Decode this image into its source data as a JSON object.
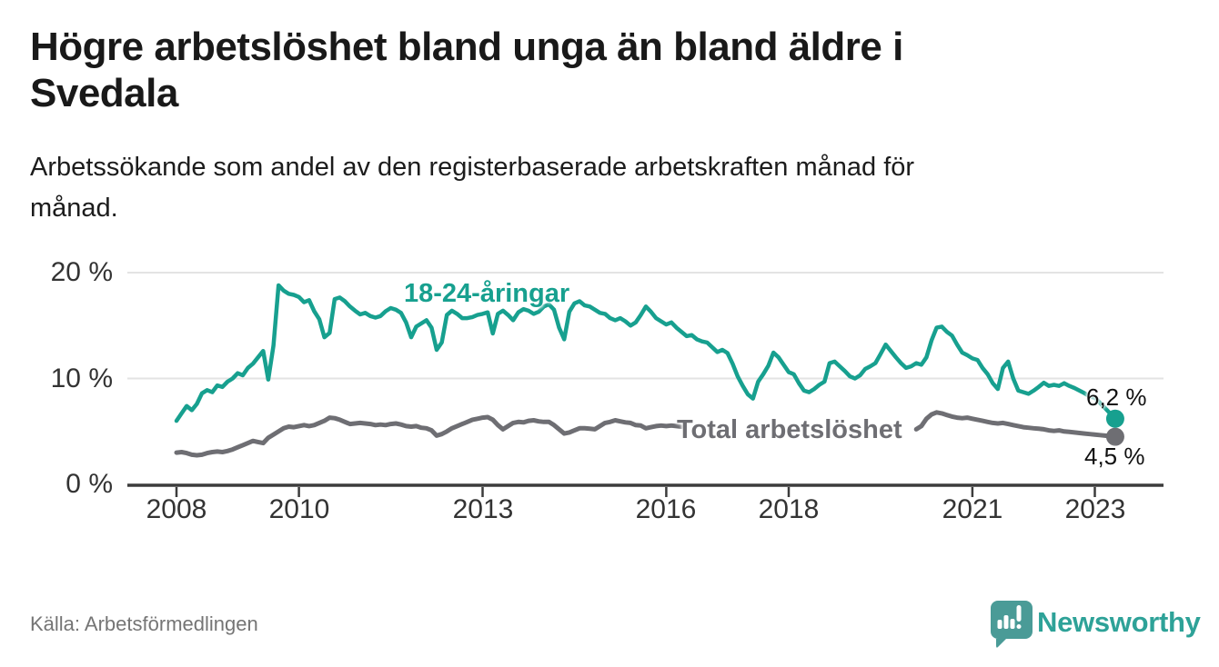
{
  "title_lines": [
    "Högre arbetslöshet bland unga än bland äldre i",
    "Svedala"
  ],
  "subtitle_lines": [
    "Arbetssökande som andel av den registerbaserade arbetskraften månad för",
    "månad."
  ],
  "source": "Källa: Arbetsförmedlingen",
  "branding": {
    "name": "Newsworthy",
    "logo_icon": "speech-bubble-bar-chart-icon",
    "logo_color": "#4A9B97",
    "text_color": "#2EA298"
  },
  "colors": {
    "young": "#17A08F",
    "total": "#6E6E73",
    "axis": "#3C3C3C",
    "grid": "#E3E3E3",
    "text": "#1A1A1A",
    "muted": "#757575"
  },
  "chart_data": {
    "type": "line",
    "title": "Högre arbetslöshet bland unga än bland äldre i Svedala",
    "subtitle": "Arbetssökande som andel av den registerbaserade arbetskraften månad för månad.",
    "source": "Källa: Arbetsförmedlingen",
    "x_unit": "month",
    "x_range": [
      "2008-01",
      "2023-05"
    ],
    "ylim": [
      0,
      21.5
    ],
    "grid": "horizontal",
    "legend_position": "inline-labels",
    "x_ticks": [
      2008,
      2010,
      2013,
      2016,
      2018,
      2021,
      2023
    ],
    "y_ticks": [
      {
        "value": 20,
        "label": "20 %"
      },
      {
        "value": 10,
        "label": "10 %"
      },
      {
        "value": 0,
        "label": "0 %"
      }
    ],
    "series": [
      {
        "name": "18-24-åringar",
        "color": "#17A08F",
        "end_label": "6,2 %",
        "values": [
          6.0,
          6.7,
          7.4,
          7.0,
          7.6,
          8.6,
          8.9,
          8.7,
          9.35,
          9.2,
          9.7,
          10.0,
          10.5,
          10.3,
          11.0,
          11.4,
          12.0,
          12.6,
          9.9,
          13.1,
          18.8,
          18.3,
          18.0,
          17.9,
          17.7,
          17.2,
          17.4,
          16.35,
          15.6,
          13.9,
          14.3,
          17.5,
          17.65,
          17.3,
          16.8,
          16.4,
          16.05,
          16.2,
          15.9,
          15.75,
          15.9,
          16.35,
          16.65,
          16.5,
          16.2,
          15.3,
          13.9,
          14.9,
          15.2,
          15.5,
          14.8,
          12.7,
          13.4,
          16.0,
          16.4,
          16.1,
          15.7,
          15.7,
          15.8,
          16.0,
          16.1,
          16.25,
          14.25,
          16.1,
          16.4,
          16.0,
          15.5,
          16.25,
          16.55,
          16.4,
          16.1,
          16.3,
          16.8,
          17.0,
          16.5,
          14.8,
          13.7,
          16.3,
          17.1,
          17.3,
          16.9,
          16.8,
          16.5,
          16.2,
          16.1,
          15.7,
          15.5,
          15.7,
          15.4,
          15.0,
          15.3,
          16.0,
          16.8,
          16.3,
          15.7,
          15.4,
          15.1,
          15.3,
          14.8,
          14.4,
          14.0,
          14.1,
          13.7,
          13.5,
          13.4,
          12.95,
          12.5,
          12.7,
          12.4,
          11.4,
          10.2,
          9.3,
          8.5,
          8.1,
          9.7,
          10.4,
          11.2,
          12.45,
          12.0,
          11.3,
          10.6,
          10.4,
          9.55,
          8.85,
          8.7,
          9.0,
          9.4,
          9.7,
          11.45,
          11.6,
          11.15,
          10.7,
          10.2,
          10.0,
          10.3,
          10.9,
          11.15,
          11.45,
          12.3,
          13.2,
          12.6,
          12.0,
          11.45,
          11.0,
          11.15,
          11.45,
          11.3,
          12.0,
          13.6,
          14.8,
          14.9,
          14.4,
          14.05,
          13.2,
          12.45,
          12.2,
          11.9,
          11.75,
          11.0,
          10.4,
          9.55,
          9.0,
          11.0,
          11.6,
          10.0,
          8.85,
          8.7,
          8.55,
          8.85,
          9.2,
          9.6,
          9.3,
          9.4,
          9.3,
          9.55,
          9.3,
          9.1,
          8.85,
          8.6,
          8.3,
          8.2,
          7.7,
          7.2,
          6.7,
          6.2
        ]
      },
      {
        "name": "Total arbetslöshet",
        "color": "#6E6E73",
        "end_label": "4,5 %",
        "values": [
          3.0,
          3.05,
          2.95,
          2.8,
          2.75,
          2.8,
          2.95,
          3.05,
          3.1,
          3.05,
          3.15,
          3.3,
          3.5,
          3.7,
          3.9,
          4.1,
          4.0,
          3.9,
          4.4,
          4.7,
          5.0,
          5.3,
          5.45,
          5.4,
          5.5,
          5.6,
          5.5,
          5.6,
          5.8,
          6.0,
          6.3,
          6.25,
          6.1,
          5.9,
          5.7,
          5.75,
          5.8,
          5.75,
          5.7,
          5.6,
          5.65,
          5.6,
          5.7,
          5.75,
          5.65,
          5.5,
          5.45,
          5.5,
          5.35,
          5.3,
          5.1,
          4.6,
          4.75,
          5.0,
          5.3,
          5.5,
          5.7,
          5.9,
          6.1,
          6.2,
          6.3,
          6.35,
          6.1,
          5.6,
          5.2,
          5.5,
          5.8,
          5.9,
          5.85,
          6.0,
          6.05,
          5.95,
          5.9,
          5.9,
          5.6,
          5.2,
          4.8,
          4.9,
          5.1,
          5.3,
          5.3,
          5.25,
          5.2,
          5.5,
          5.8,
          5.9,
          6.05,
          5.95,
          5.85,
          5.8,
          5.6,
          5.55,
          5.3,
          5.4,
          5.5,
          5.55,
          5.5,
          5.55,
          5.5,
          5.45,
          5.4,
          5.3,
          5.3,
          5.35,
          5.3,
          5.25,
          5.2,
          5.3,
          5.3,
          5.25,
          5.2,
          5.1,
          5.05,
          5.0,
          5.05,
          5.1,
          5.1,
          5.05,
          5.0,
          5.0,
          5.0,
          4.95,
          4.9,
          4.85,
          4.8,
          4.8,
          4.85,
          4.9,
          4.9,
          4.85,
          4.8,
          4.8,
          4.8,
          4.85,
          4.9,
          4.9,
          4.95,
          5.0,
          5.05,
          5.1,
          5.05,
          5.0,
          5.0,
          5.05,
          5.1,
          5.2,
          5.5,
          6.2,
          6.6,
          6.8,
          6.7,
          6.55,
          6.4,
          6.3,
          6.25,
          6.3,
          6.2,
          6.1,
          6.0,
          5.9,
          5.8,
          5.75,
          5.8,
          5.7,
          5.6,
          5.5,
          5.4,
          5.35,
          5.3,
          5.25,
          5.2,
          5.1,
          5.05,
          5.1,
          5.0,
          4.95,
          4.9,
          4.85,
          4.8,
          4.75,
          4.7,
          4.65,
          4.6,
          4.55,
          4.5
        ]
      }
    ]
  }
}
